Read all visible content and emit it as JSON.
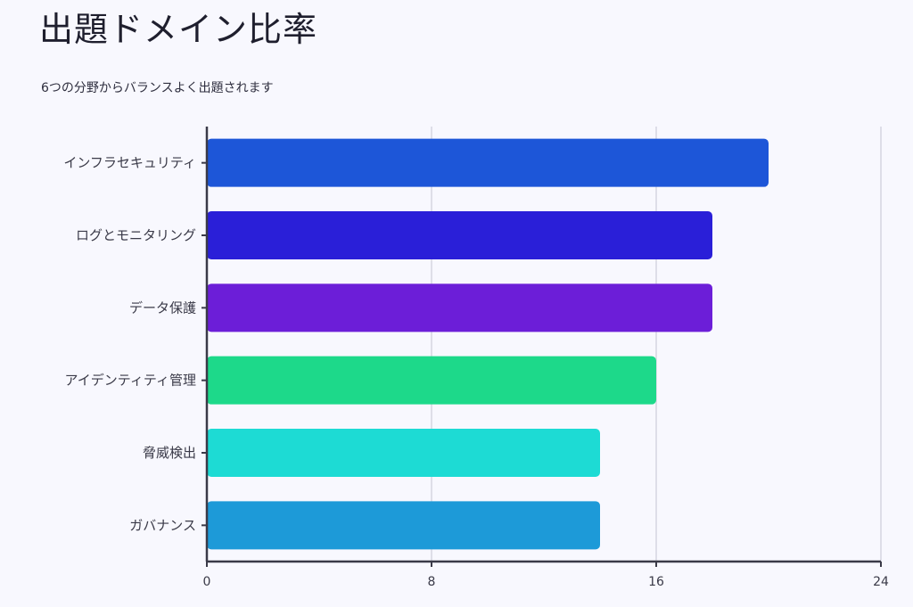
{
  "title": "出題ドメイン比率",
  "subtitle": "6つの分野からバランスよく出題されます",
  "chart_data": {
    "type": "bar",
    "orientation": "horizontal",
    "categories": [
      "インフラセキュリティ",
      "ログとモニタリング",
      "データ保護",
      "アイデンティティ管理",
      "脅威検出",
      "ガバナンス"
    ],
    "values": [
      20,
      18,
      18,
      16,
      14,
      14
    ],
    "colors": [
      "#1d56d8",
      "#2a1fd8",
      "#6c1ed8",
      "#1dd98a",
      "#1ddbd4",
      "#1d9ad8"
    ],
    "xlim": [
      0,
      24
    ],
    "xticks": [
      "0",
      "8",
      "16",
      "24"
    ],
    "grid": true,
    "xlabel": "",
    "ylabel": ""
  }
}
